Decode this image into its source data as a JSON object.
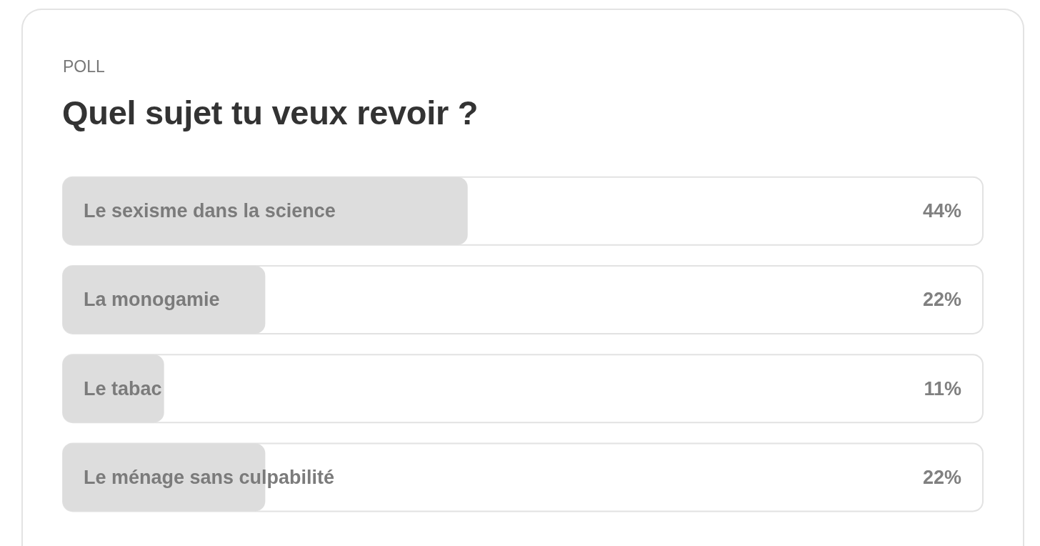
{
  "chart_data": {
    "type": "bar",
    "orientation": "horizontal",
    "subtitle": "POLL",
    "title": "Quel sujet tu veux revoir ?",
    "categories": [
      "Le sexisme dans la science",
      "La monogamie",
      "Le tabac",
      "Le ménage sans culpabilité"
    ],
    "values": [
      44,
      22,
      11,
      22
    ],
    "value_labels": [
      "44%",
      "22%",
      "11%",
      "22%"
    ],
    "color": "#dddddd",
    "xlim": [
      0,
      100
    ],
    "tick_labels": "y"
  }
}
